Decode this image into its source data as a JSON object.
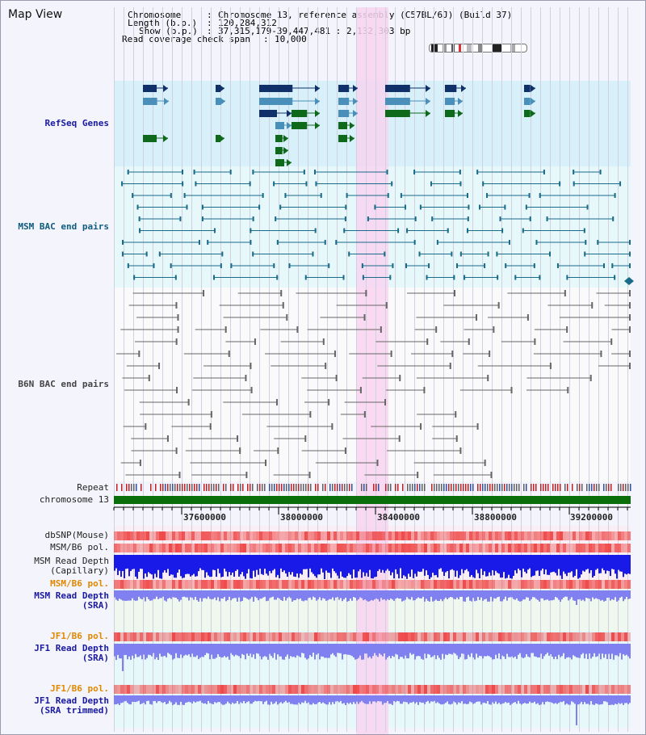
{
  "window": {
    "title": "Map View"
  },
  "header": {
    "chromosome_label": "Chromosome",
    "chromosome_value": "Chromosome 13, reference assembly (C57BL/6J) (Build 37)",
    "length_label": "Length (b.p.)",
    "length_value": "120,284,312",
    "show_label": "Show (b.p.)",
    "show_value": "37,315,179-39,447,481 : 2,132,303 bp",
    "coverage_label": "Read coverage check span",
    "coverage_value": "10,000"
  },
  "tracks": {
    "refseq_genes": "RefSeq Genes",
    "msm_bac": "MSM BAC end pairs",
    "b6n_bac": "B6N BAC end pairs",
    "repeat": "Repeat",
    "chromosome": "chromosome 13",
    "dbsnp": "dbSNP(Mouse)",
    "msm_b6_pol_1": "MSM/B6 pol.",
    "msm_read_depth_cap_1": "MSM Read Depth",
    "msm_read_depth_cap_2": "(Capillary)",
    "msm_b6_pol_2": "MSM/B6 pol.",
    "msm_read_depth_sra_1": "MSM Read Depth",
    "msm_read_depth_sra_2": "(SRA)",
    "jf1_b6_pol_1": "JF1/B6 pol.",
    "jf1_read_depth_sra_1": "JF1 Read Depth",
    "jf1_read_depth_sra_2": "(SRA)",
    "jf1_b6_pol_2": "JF1/B6 pol.",
    "jf1_read_depth_trim_1": "JF1 Read Depth",
    "jf1_read_depth_trim_2": "(SRA trimmed)"
  },
  "ruler": {
    "ticks": [
      "37600000",
      "38000000",
      "38400000",
      "38800000",
      "39200000"
    ]
  },
  "colors": {
    "refseq_bg": "#d8f0fa",
    "bac_bg": "#e6f8fa",
    "highlight": "#f8d4f0",
    "gene_dark": "#10306a",
    "gene_mid": "#4a8fba",
    "gene_green": "#0e6a1a",
    "msm_bac_line": "#1a6a8a",
    "b6n_bac_line": "#666666",
    "snp_red": "#f04848",
    "depth_blue": "#1a1ae8",
    "depth_light": "#8080f0",
    "chromosome_green": "#0a6e0a"
  }
}
